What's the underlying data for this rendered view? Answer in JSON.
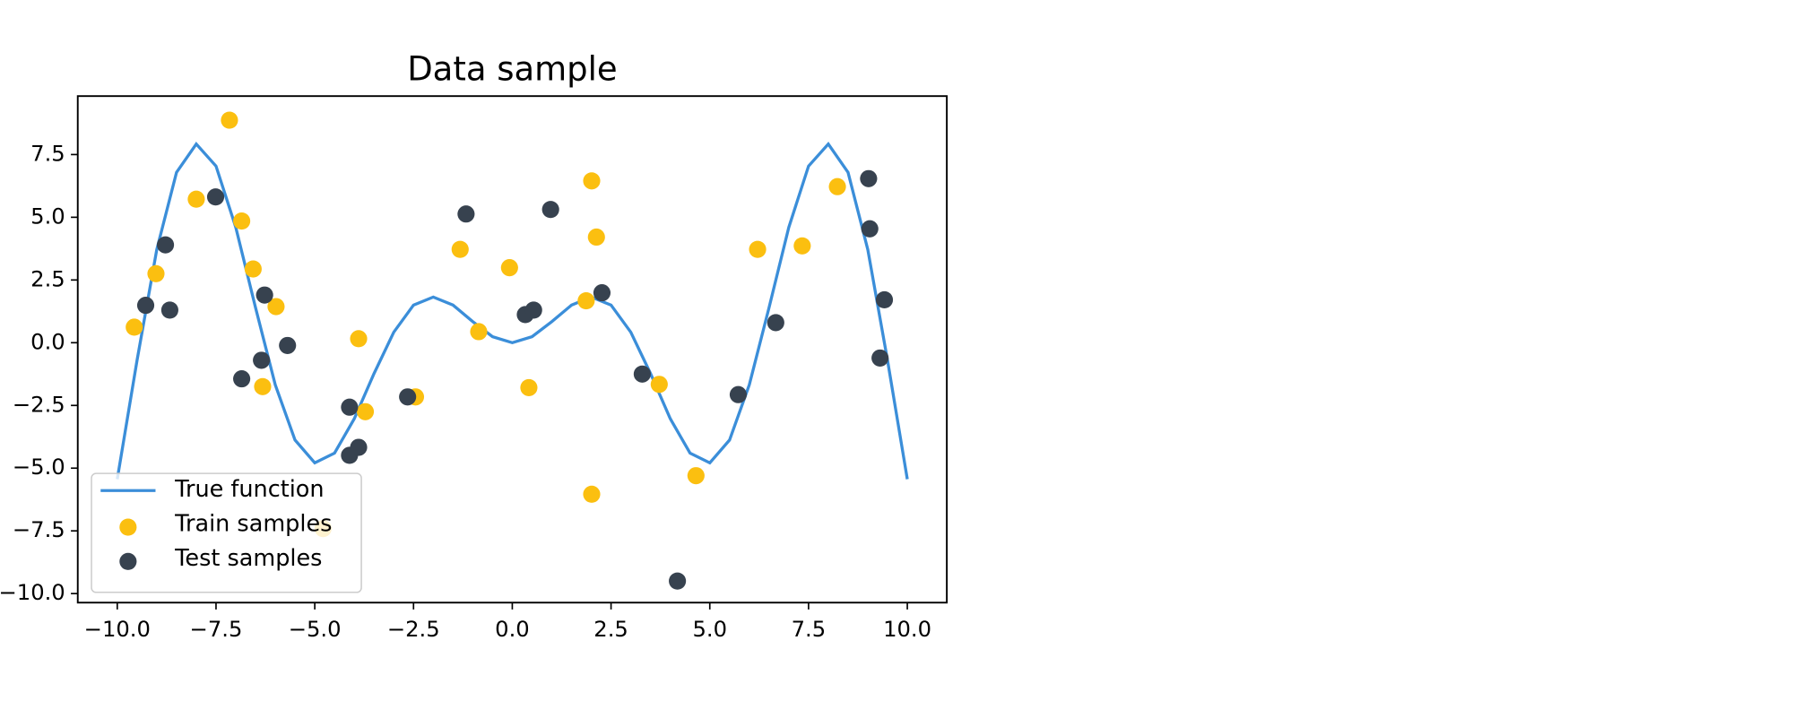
{
  "chart_data": {
    "type": "scatter",
    "title": "Data sample",
    "xlim": [
      -11,
      11
    ],
    "ylim": [
      -10.36,
      9.83
    ],
    "xticks": [
      {
        "value": -10,
        "label": "−10.0"
      },
      {
        "value": -7.5,
        "label": "−7.5"
      },
      {
        "value": -5,
        "label": "−5.0"
      },
      {
        "value": -2.5,
        "label": "−2.5"
      },
      {
        "value": 0,
        "label": "0.0"
      },
      {
        "value": 2.5,
        "label": "2.5"
      },
      {
        "value": 5,
        "label": "5.0"
      },
      {
        "value": 7.5,
        "label": "7.5"
      },
      {
        "value": 10,
        "label": "10.0"
      }
    ],
    "yticks": [
      {
        "value": -10,
        "label": "−10.0"
      },
      {
        "value": -7.5,
        "label": "−7.5"
      },
      {
        "value": -5,
        "label": "−5.0"
      },
      {
        "value": -2.5,
        "label": "−2.5"
      },
      {
        "value": 0,
        "label": "0.0"
      },
      {
        "value": 2.5,
        "label": "2.5"
      },
      {
        "value": 5,
        "label": "5.0"
      },
      {
        "value": 7.5,
        "label": "7.5"
      }
    ],
    "grid": false,
    "legend": "lower left",
    "series": [
      {
        "name": "True function",
        "type": "line",
        "color": "#3b8ed9",
        "x": [
          -10,
          -9.5,
          -9,
          -8.5,
          -8,
          -7.5,
          -7,
          -6.5,
          -6,
          -5.5,
          -5,
          -4.5,
          -4,
          -3.5,
          -3,
          -2.5,
          -2,
          -1.5,
          -1,
          -0.5,
          0,
          0.5,
          1,
          1.5,
          2,
          2.5,
          3,
          3.5,
          4,
          4.5,
          5,
          5.5,
          6,
          6.5,
          7,
          7.5,
          8,
          8.5,
          9,
          9.5,
          10
        ],
        "values": [
          -5.44,
          -0.71,
          3.71,
          6.79,
          7.92,
          7.04,
          4.6,
          1.4,
          -1.68,
          -3.88,
          -4.79,
          -4.4,
          -3.03,
          -1.23,
          0.42,
          1.5,
          1.82,
          1.5,
          0.84,
          0.24,
          0,
          0.24,
          0.84,
          1.5,
          1.82,
          1.5,
          0.42,
          -1.23,
          -3.03,
          -4.4,
          -4.79,
          -3.88,
          -1.68,
          1.4,
          4.6,
          7.04,
          7.92,
          6.79,
          3.71,
          -0.71,
          -5.44
        ]
      },
      {
        "name": "Train samples",
        "type": "scatter",
        "color": "#fbbf10",
        "x": [
          -9.57,
          -9.02,
          -8.0,
          -7.16,
          -6.85,
          -6.56,
          -5.98,
          -6.32,
          -3.89,
          -3.72,
          -2.45,
          -4.79,
          -1.32,
          -0.85,
          -0.07,
          0.42,
          1.87,
          2.01,
          2.13,
          2.01,
          3.72,
          4.65,
          6.21,
          7.34,
          8.23
        ],
        "values": [
          0.62,
          2.75,
          5.72,
          8.87,
          4.85,
          2.94,
          1.44,
          -1.75,
          0.16,
          -2.75,
          -2.16,
          -7.41,
          3.72,
          0.44,
          2.99,
          -1.79,
          1.67,
          6.45,
          4.21,
          -6.04,
          -1.66,
          -5.3,
          3.72,
          3.86,
          6.22
        ]
      },
      {
        "name": "Test samples",
        "type": "scatter",
        "color": "#37424f",
        "x": [
          -9.28,
          -8.78,
          -8.67,
          -7.51,
          -6.85,
          -6.27,
          -6.35,
          -5.69,
          -4.12,
          -4.12,
          -3.89,
          -2.65,
          -1.17,
          0.33,
          0.54,
          0.97,
          2.27,
          3.29,
          4.18,
          5.72,
          6.67,
          9.02,
          9.05,
          9.42,
          9.31
        ],
        "values": [
          1.49,
          3.9,
          1.3,
          5.81,
          -1.44,
          1.9,
          -0.7,
          -0.11,
          -2.57,
          -4.49,
          -4.17,
          -2.16,
          5.13,
          1.12,
          1.3,
          5.31,
          1.99,
          -1.25,
          -9.5,
          -2.07,
          0.8,
          6.54,
          4.54,
          1.71,
          -0.61
        ]
      }
    ]
  }
}
